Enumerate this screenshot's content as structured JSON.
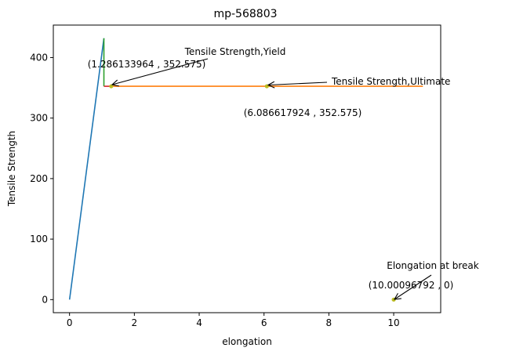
{
  "chart_data": {
    "type": "line",
    "title": "mp-568803",
    "xlabel": "elongation",
    "ylabel": "Tensile Strength",
    "xlim": [
      -0.5,
      11.45
    ],
    "ylim": [
      -21.6,
      453.7
    ],
    "x_ticks": [
      0,
      2,
      4,
      6,
      8,
      10
    ],
    "y_ticks": [
      0,
      100,
      200,
      300,
      400
    ],
    "grid": false,
    "legend": "none",
    "series": [
      {
        "color": "#1f77b4",
        "points": [
          [
            0,
            0
          ],
          [
            1.06,
            432
          ]
        ]
      },
      {
        "color": "#2ca02c",
        "points": [
          [
            1.06,
            432
          ],
          [
            1.06,
            352.575
          ]
        ]
      },
      {
        "color": "#d62728",
        "points": [
          [
            1.06,
            352.575
          ],
          [
            1.286133964,
            352.575
          ]
        ]
      },
      {
        "color": "#ff7f0e",
        "points": [
          [
            1.286133964,
            352.575
          ],
          [
            10.9,
            352.575
          ]
        ]
      }
    ],
    "markers": [
      {
        "x": 1.286133964,
        "y": 352.575,
        "color": "#bcbd22"
      },
      {
        "x": 6.086617924,
        "y": 352.575,
        "color": "#bcbd22"
      },
      {
        "x": 10.00096792,
        "y": 0,
        "color": "#bcbd22"
      }
    ],
    "annotations": [
      {
        "name": "yield",
        "label": "Tensile Strength,Yield",
        "coord_text": "(1.286133964 , 352.575)",
        "x": 1.286133964,
        "y": 352.575
      },
      {
        "name": "ultimate",
        "label": "Tensile Strength,Ultimate",
        "coord_text": "(6.086617924 , 352.575)",
        "x": 6.086617924,
        "y": 352.575
      },
      {
        "name": "break",
        "label": "Elongation at break",
        "coord_text": "(10.00096792 , 0)",
        "x": 10.00096792,
        "y": 0
      }
    ]
  }
}
